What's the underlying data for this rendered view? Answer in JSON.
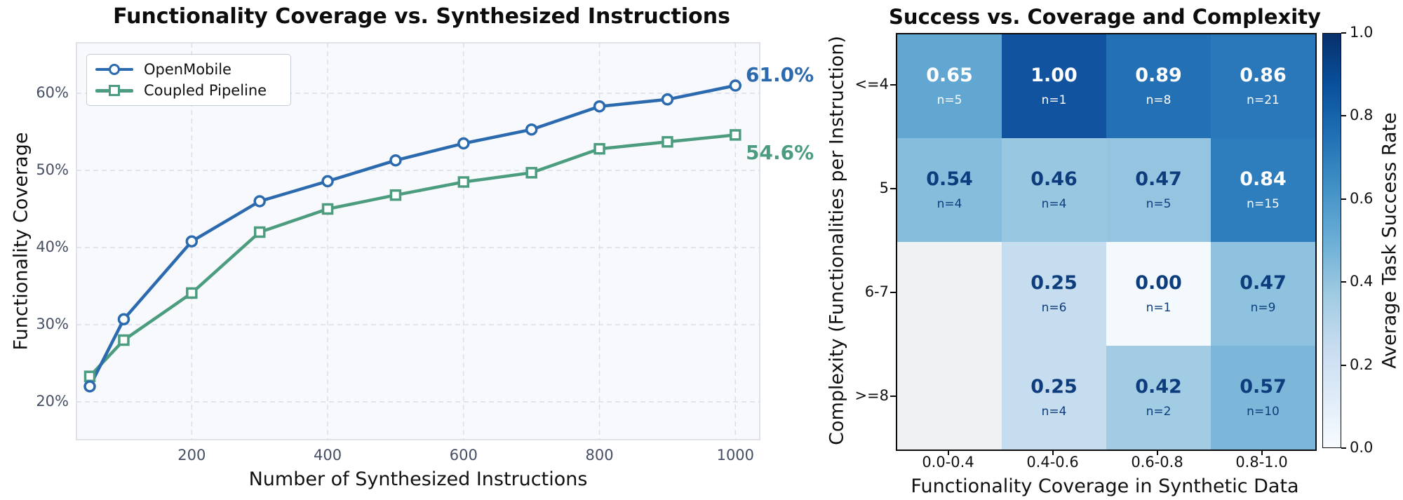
{
  "chart_data": [
    {
      "type": "line",
      "title": "Functionality Coverage vs. Synthesized Instructions",
      "xlabel": "Number of Synthesized Instructions",
      "ylabel": "Functionality Coverage",
      "x": [
        50,
        100,
        200,
        300,
        400,
        500,
        600,
        700,
        800,
        900,
        1000
      ],
      "series": [
        {
          "name": "OpenMobile",
          "color": "#2b6aae",
          "marker": "circle",
          "values": [
            22.0,
            30.7,
            40.8,
            46.0,
            48.6,
            51.3,
            53.5,
            55.3,
            58.3,
            59.2,
            61.0
          ],
          "end_label": "61.0%"
        },
        {
          "name": "Coupled Pipeline",
          "color": "#4c9c7f",
          "marker": "square",
          "values": [
            23.3,
            28.0,
            34.1,
            42.0,
            45.0,
            46.8,
            48.5,
            49.7,
            52.8,
            53.7,
            54.6
          ],
          "end_label": "54.6%"
        }
      ],
      "xtick_labels": [
        "200",
        "400",
        "600",
        "800",
        "1000"
      ],
      "xtick_values": [
        200,
        400,
        600,
        800,
        1000
      ],
      "ytick_labels": [
        "20%",
        "30%",
        "40%",
        "50%",
        "60%"
      ],
      "ytick_values": [
        20,
        30,
        40,
        50,
        60
      ],
      "xlim": [
        30,
        1036
      ],
      "ylim": [
        15.1,
        66.5
      ],
      "grid": true,
      "legend_position": "upper left",
      "plot_bg": "#f8f9fc",
      "grid_color": "#d9dde7"
    },
    {
      "type": "heatmap",
      "title": "Success vs. Coverage and Complexity",
      "xlabel": "Functionality Coverage in Synthetic Data",
      "ylabel": "Complexity (Functionalities per Instruction)",
      "rows": [
        "<=4",
        "5",
        "6-7",
        ">=8"
      ],
      "cols": [
        "0.0-0.4",
        "0.4-0.6",
        "0.6-0.8",
        "0.8-1.0"
      ],
      "cells": [
        [
          {
            "value": 0.65,
            "label": "0.65",
            "n": "n=5",
            "count": 5,
            "bg": "#61a7d2",
            "fg": "#ffffff"
          },
          {
            "value": 1.0,
            "label": "1.00",
            "n": "n=1",
            "count": 1,
            "bg": "#11539f",
            "fg": "#ffffff"
          },
          {
            "value": 0.89,
            "label": "0.89",
            "n": "n=8",
            "count": 8,
            "bg": "#2470b5",
            "fg": "#ffffff"
          },
          {
            "value": 0.86,
            "label": "0.86",
            "n": "n=21",
            "count": 21,
            "bg": "#2a78ba",
            "fg": "#ffffff"
          }
        ],
        [
          {
            "value": 0.54,
            "label": "0.54",
            "n": "n=4",
            "count": 4,
            "bg": "#86bddc",
            "fg": "#0d3d7c"
          },
          {
            "value": 0.46,
            "label": "0.46",
            "n": "n=4",
            "count": 4,
            "bg": "#98c7e1",
            "fg": "#0d3d7c"
          },
          {
            "value": 0.47,
            "label": "0.47",
            "n": "n=5",
            "count": 5,
            "bg": "#94c4e0",
            "fg": "#0d3d7c"
          },
          {
            "value": 0.84,
            "label": "0.84",
            "n": "n=15",
            "count": 15,
            "bg": "#2e7dbd",
            "fg": "#ffffff"
          }
        ],
        [
          {
            "value": null,
            "label": "",
            "n": "",
            "count": null,
            "bg": "#f0f1f3",
            "fg": "#0d3d7c"
          },
          {
            "value": 0.25,
            "label": "0.25",
            "n": "n=6",
            "count": 6,
            "bg": "#c6dcef",
            "fg": "#0d3d7c"
          },
          {
            "value": 0.0,
            "label": "0.00",
            "n": "n=1",
            "count": 1,
            "bg": "#f4f9fe",
            "fg": "#0d3d7c"
          },
          {
            "value": 0.47,
            "label": "0.47",
            "n": "n=9",
            "count": 9,
            "bg": "#8fc2df",
            "fg": "#0d3d7c"
          }
        ],
        [
          {
            "value": null,
            "label": "",
            "n": "",
            "count": null,
            "bg": "#f0f1f3",
            "fg": "#0d3d7c"
          },
          {
            "value": 0.25,
            "label": "0.25",
            "n": "n=4",
            "count": 4,
            "bg": "#c6dcef",
            "fg": "#0d3d7c"
          },
          {
            "value": 0.42,
            "label": "0.42",
            "n": "n=2",
            "count": 2,
            "bg": "#a2cbe4",
            "fg": "#0d3d7c"
          },
          {
            "value": 0.57,
            "label": "0.57",
            "n": "n=10",
            "count": 10,
            "bg": "#7cb7da",
            "fg": "#0d3d7c"
          }
        ]
      ],
      "colorbar": {
        "label": "Average Task Success Rate",
        "ticks": [
          "1.0",
          "0.8",
          "0.6",
          "0.4",
          "0.2",
          "0.0"
        ],
        "cmap": "Blues",
        "vmin": 0.0,
        "vmax": 1.0
      }
    }
  ]
}
